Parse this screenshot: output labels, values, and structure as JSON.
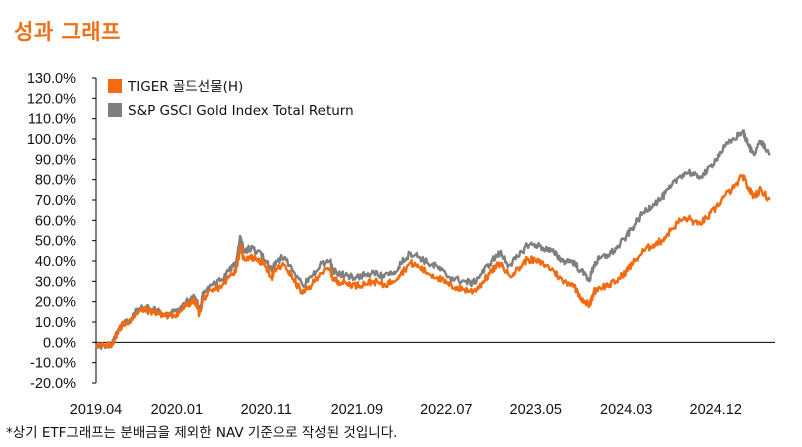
{
  "title": "성과 그래프",
  "footnote": "*상기 ETF그래프는 분배금을 제외한 NAV 기준으로 작성된 것입니다.",
  "chart_data": {
    "type": "line",
    "title": "성과 그래프",
    "xlabel": "",
    "ylabel": "",
    "ylim": [
      -0.2,
      1.3
    ],
    "y_ticks": [
      {
        "value": 1.3,
        "label": "130.0%"
      },
      {
        "value": 1.2,
        "label": "120.0%"
      },
      {
        "value": 1.1,
        "label": "110.0%"
      },
      {
        "value": 1.0,
        "label": "100.0%"
      },
      {
        "value": 0.9,
        "label": "90.0%"
      },
      {
        "value": 0.8,
        "label": "80.0%"
      },
      {
        "value": 0.7,
        "label": "70.0%"
      },
      {
        "value": 0.6,
        "label": "60.0%"
      },
      {
        "value": 0.5,
        "label": "50.0%"
      },
      {
        "value": 0.4,
        "label": "40.0%"
      },
      {
        "value": 0.3,
        "label": "30.0%"
      },
      {
        "value": 0.2,
        "label": "20.0%"
      },
      {
        "value": 0.1,
        "label": "10.0%"
      },
      {
        "value": 0.0,
        "label": "0.0%"
      },
      {
        "value": -0.1,
        "label": "-10.0%"
      },
      {
        "value": -0.2,
        "label": "-20.0%"
      }
    ],
    "x_range": [
      2019.25,
      2025.55
    ],
    "x_ticks": [
      {
        "value": 2019.25,
        "label": "2019.04"
      },
      {
        "value": 2020.0,
        "label": "2020.01"
      },
      {
        "value": 2020.83,
        "label": "2020.11"
      },
      {
        "value": 2021.67,
        "label": "2021.09"
      },
      {
        "value": 2022.5,
        "label": "2022.07"
      },
      {
        "value": 2023.33,
        "label": "2023.05"
      },
      {
        "value": 2024.17,
        "label": "2024.03"
      },
      {
        "value": 2025.0,
        "label": "2024.12"
      }
    ],
    "legend_position": "top-left",
    "series": [
      {
        "name": "TIGER 골드선물(H)",
        "color": "#f26b10",
        "points": [
          [
            2019.25,
            -0.01
          ],
          [
            2019.33,
            -0.02
          ],
          [
            2019.4,
            -0.01
          ],
          [
            2019.45,
            0.05
          ],
          [
            2019.5,
            0.09
          ],
          [
            2019.58,
            0.11
          ],
          [
            2019.63,
            0.15
          ],
          [
            2019.7,
            0.16
          ],
          [
            2019.78,
            0.15
          ],
          [
            2019.85,
            0.14
          ],
          [
            2019.92,
            0.13
          ],
          [
            2020.0,
            0.14
          ],
          [
            2020.05,
            0.16
          ],
          [
            2020.1,
            0.19
          ],
          [
            2020.17,
            0.2
          ],
          [
            2020.21,
            0.14
          ],
          [
            2020.25,
            0.22
          ],
          [
            2020.33,
            0.25
          ],
          [
            2020.42,
            0.28
          ],
          [
            2020.5,
            0.33
          ],
          [
            2020.55,
            0.36
          ],
          [
            2020.59,
            0.47
          ],
          [
            2020.62,
            0.41
          ],
          [
            2020.67,
            0.42
          ],
          [
            2020.75,
            0.41
          ],
          [
            2020.83,
            0.37
          ],
          [
            2020.88,
            0.32
          ],
          [
            2020.92,
            0.36
          ],
          [
            2021.0,
            0.38
          ],
          [
            2021.08,
            0.31
          ],
          [
            2021.17,
            0.24
          ],
          [
            2021.25,
            0.28
          ],
          [
            2021.33,
            0.34
          ],
          [
            2021.42,
            0.36
          ],
          [
            2021.45,
            0.31
          ],
          [
            2021.5,
            0.3
          ],
          [
            2021.58,
            0.29
          ],
          [
            2021.67,
            0.28
          ],
          [
            2021.75,
            0.29
          ],
          [
            2021.83,
            0.3
          ],
          [
            2021.92,
            0.28
          ],
          [
            2022.0,
            0.3
          ],
          [
            2022.08,
            0.34
          ],
          [
            2022.17,
            0.39
          ],
          [
            2022.25,
            0.37
          ],
          [
            2022.33,
            0.34
          ],
          [
            2022.42,
            0.32
          ],
          [
            2022.5,
            0.29
          ],
          [
            2022.58,
            0.27
          ],
          [
            2022.67,
            0.26
          ],
          [
            2022.75,
            0.25
          ],
          [
            2022.83,
            0.29
          ],
          [
            2022.92,
            0.35
          ],
          [
            2023.0,
            0.39
          ],
          [
            2023.08,
            0.33
          ],
          [
            2023.17,
            0.36
          ],
          [
            2023.25,
            0.41
          ],
          [
            2023.33,
            0.4
          ],
          [
            2023.42,
            0.38
          ],
          [
            2023.5,
            0.35
          ],
          [
            2023.58,
            0.3
          ],
          [
            2023.67,
            0.29
          ],
          [
            2023.75,
            0.22
          ],
          [
            2023.83,
            0.18
          ],
          [
            2023.87,
            0.25
          ],
          [
            2023.92,
            0.27
          ],
          [
            2024.0,
            0.28
          ],
          [
            2024.08,
            0.3
          ],
          [
            2024.17,
            0.35
          ],
          [
            2024.25,
            0.4
          ],
          [
            2024.33,
            0.45
          ],
          [
            2024.42,
            0.48
          ],
          [
            2024.5,
            0.5
          ],
          [
            2024.58,
            0.55
          ],
          [
            2024.67,
            0.6
          ],
          [
            2024.75,
            0.61
          ],
          [
            2024.83,
            0.58
          ],
          [
            2024.92,
            0.61
          ],
          [
            2025.0,
            0.66
          ],
          [
            2025.08,
            0.72
          ],
          [
            2025.17,
            0.76
          ],
          [
            2025.25,
            0.82
          ],
          [
            2025.3,
            0.76
          ],
          [
            2025.35,
            0.72
          ],
          [
            2025.42,
            0.75
          ],
          [
            2025.5,
            0.7
          ]
        ]
      },
      {
        "name": "S&P GSCI Gold Index Total Return",
        "color": "#7f7f7f",
        "points": [
          [
            2019.25,
            -0.01
          ],
          [
            2019.33,
            -0.02
          ],
          [
            2019.4,
            -0.01
          ],
          [
            2019.45,
            0.05
          ],
          [
            2019.5,
            0.09
          ],
          [
            2019.58,
            0.11
          ],
          [
            2019.63,
            0.16
          ],
          [
            2019.7,
            0.17
          ],
          [
            2019.78,
            0.16
          ],
          [
            2019.85,
            0.15
          ],
          [
            2019.92,
            0.14
          ],
          [
            2020.0,
            0.15
          ],
          [
            2020.05,
            0.18
          ],
          [
            2020.1,
            0.2
          ],
          [
            2020.17,
            0.22
          ],
          [
            2020.21,
            0.16
          ],
          [
            2020.25,
            0.25
          ],
          [
            2020.33,
            0.28
          ],
          [
            2020.42,
            0.31
          ],
          [
            2020.5,
            0.36
          ],
          [
            2020.55,
            0.39
          ],
          [
            2020.59,
            0.52
          ],
          [
            2020.62,
            0.45
          ],
          [
            2020.67,
            0.46
          ],
          [
            2020.75,
            0.45
          ],
          [
            2020.83,
            0.4
          ],
          [
            2020.88,
            0.35
          ],
          [
            2020.92,
            0.4
          ],
          [
            2021.0,
            0.42
          ],
          [
            2021.08,
            0.35
          ],
          [
            2021.17,
            0.28
          ],
          [
            2021.25,
            0.32
          ],
          [
            2021.33,
            0.38
          ],
          [
            2021.42,
            0.4
          ],
          [
            2021.45,
            0.35
          ],
          [
            2021.5,
            0.34
          ],
          [
            2021.58,
            0.33
          ],
          [
            2021.67,
            0.32
          ],
          [
            2021.75,
            0.33
          ],
          [
            2021.83,
            0.34
          ],
          [
            2021.92,
            0.32
          ],
          [
            2022.0,
            0.34
          ],
          [
            2022.08,
            0.39
          ],
          [
            2022.17,
            0.44
          ],
          [
            2022.25,
            0.42
          ],
          [
            2022.33,
            0.39
          ],
          [
            2022.42,
            0.37
          ],
          [
            2022.5,
            0.33
          ],
          [
            2022.58,
            0.31
          ],
          [
            2022.67,
            0.3
          ],
          [
            2022.75,
            0.29
          ],
          [
            2022.83,
            0.34
          ],
          [
            2022.92,
            0.4
          ],
          [
            2023.0,
            0.44
          ],
          [
            2023.08,
            0.38
          ],
          [
            2023.17,
            0.42
          ],
          [
            2023.25,
            0.48
          ],
          [
            2023.33,
            0.48
          ],
          [
            2023.42,
            0.46
          ],
          [
            2023.5,
            0.44
          ],
          [
            2023.58,
            0.4
          ],
          [
            2023.67,
            0.4
          ],
          [
            2023.75,
            0.35
          ],
          [
            2023.83,
            0.31
          ],
          [
            2023.87,
            0.38
          ],
          [
            2023.92,
            0.41
          ],
          [
            2024.0,
            0.43
          ],
          [
            2024.08,
            0.46
          ],
          [
            2024.17,
            0.52
          ],
          [
            2024.25,
            0.58
          ],
          [
            2024.33,
            0.64
          ],
          [
            2024.42,
            0.68
          ],
          [
            2024.5,
            0.71
          ],
          [
            2024.58,
            0.76
          ],
          [
            2024.67,
            0.82
          ],
          [
            2024.75,
            0.84
          ],
          [
            2024.83,
            0.81
          ],
          [
            2024.92,
            0.84
          ],
          [
            2025.0,
            0.9
          ],
          [
            2025.08,
            0.96
          ],
          [
            2025.17,
            1.0
          ],
          [
            2025.25,
            1.04
          ],
          [
            2025.3,
            0.97
          ],
          [
            2025.35,
            0.93
          ],
          [
            2025.42,
            0.99
          ],
          [
            2025.5,
            0.92
          ]
        ]
      }
    ]
  }
}
